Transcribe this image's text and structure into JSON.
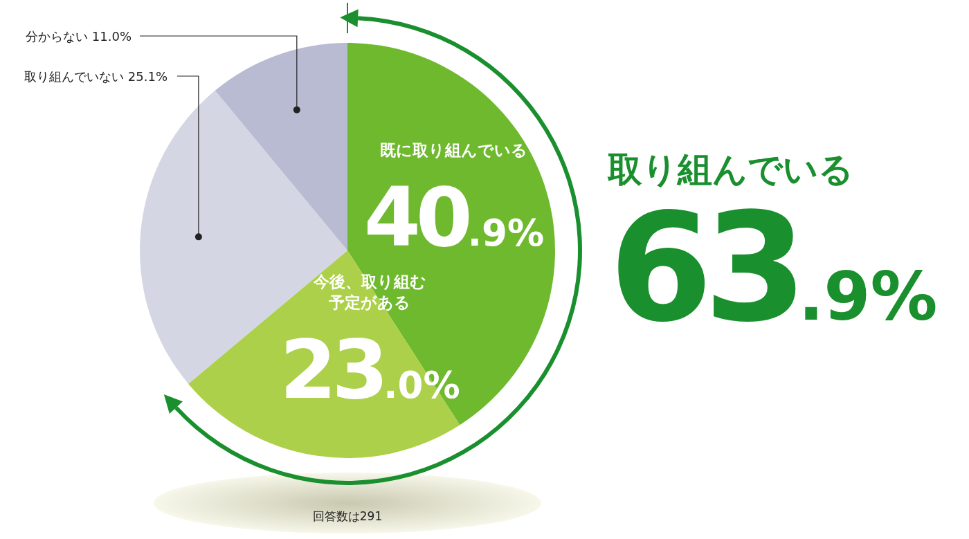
{
  "chart_data": {
    "type": "pie",
    "categories": [
      "既に取り組んでいる",
      "今後、取り組む予定がある",
      "取り組んでいない",
      "分からない"
    ],
    "values": [
      40.9,
      23.0,
      25.1,
      11.0
    ],
    "colors": [
      "#6fb92e",
      "#acd04a",
      "#d4d6e3",
      "#b8bbd1"
    ],
    "value_labels": [
      "40.9%",
      "23.0%",
      "25.1%",
      "11.0%"
    ],
    "annotations": [
      "取り組んでいる",
      "63.9%",
      "回答数は291"
    ]
  }
}
